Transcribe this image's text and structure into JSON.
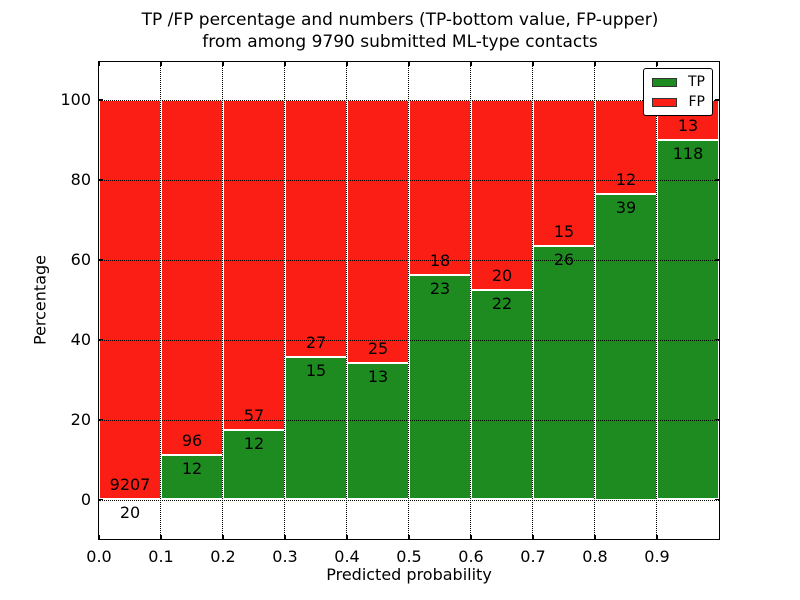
{
  "title": {
    "line1": "TP /FP percentage and numbers (TP-bottom value, FP-upper)",
    "line2": "from among 9790 submitted ML-type contacts"
  },
  "axes": {
    "x_label": "Predicted probability",
    "y_label": "Percentage",
    "x_tick_labels": [
      "0.0",
      "0.1",
      "0.2",
      "0.3",
      "0.4",
      "0.5",
      "0.6",
      "0.7",
      "0.8",
      "0.9"
    ],
    "x_tick_values": [
      0.0,
      0.1,
      0.2,
      0.3,
      0.4,
      0.5,
      0.6,
      0.7,
      0.8,
      0.9
    ],
    "y_tick_labels": [
      "0",
      "20",
      "40",
      "60",
      "80",
      "100"
    ],
    "y_tick_values": [
      0,
      20,
      40,
      60,
      80,
      100
    ],
    "xlim": [
      0.0,
      1.0
    ],
    "ylim": [
      -9.9,
      109.5
    ],
    "grid_style": "dotted"
  },
  "legend": {
    "position": "upper-right",
    "items": [
      {
        "label": "TP",
        "color": "#1e8b20"
      },
      {
        "label": "FP",
        "color": "#fa1e14"
      }
    ]
  },
  "colors": {
    "tp": "#1e8b20",
    "fp": "#fa1e14",
    "grid": "#000000",
    "background": "#ffffff",
    "text": "#000000"
  },
  "chart_data": {
    "type": "bar",
    "stacked": true,
    "normalized": "each bin scaled to 100%",
    "title": "TP /FP percentage and numbers (TP-bottom value, FP-upper) from among 9790 submitted ML-type contacts",
    "xlabel": "Predicted probability",
    "ylabel": "Percentage",
    "xlim": [
      0.0,
      1.0
    ],
    "ylim": [
      -9.9,
      109.5
    ],
    "grid": true,
    "legend_position": "upper right",
    "bin_edges": [
      0.0,
      0.1,
      0.2,
      0.3,
      0.4,
      0.5,
      0.6,
      0.7,
      0.8,
      0.9,
      1.0
    ],
    "categories": [
      "0.0-0.1",
      "0.1-0.2",
      "0.2-0.3",
      "0.3-0.4",
      "0.4-0.5",
      "0.5-0.6",
      "0.6-0.7",
      "0.7-0.8",
      "0.8-0.9",
      "0.9-1.0"
    ],
    "series": [
      {
        "name": "TP",
        "color": "#1e8b20",
        "counts": [
          20,
          12,
          12,
          15,
          13,
          23,
          22,
          26,
          39,
          118
        ]
      },
      {
        "name": "FP",
        "color": "#fa1e14",
        "counts": [
          9207,
          96,
          57,
          27,
          25,
          18,
          20,
          15,
          12,
          13
        ]
      }
    ],
    "tp_percent": [
      0.22,
      11.11,
      17.39,
      35.71,
      34.21,
      56.1,
      52.38,
      63.41,
      76.47,
      90.08
    ],
    "fp_percent": [
      99.78,
      88.89,
      82.61,
      64.29,
      65.79,
      43.9,
      47.62,
      36.59,
      23.53,
      9.92
    ],
    "total_contacts": 9790
  }
}
